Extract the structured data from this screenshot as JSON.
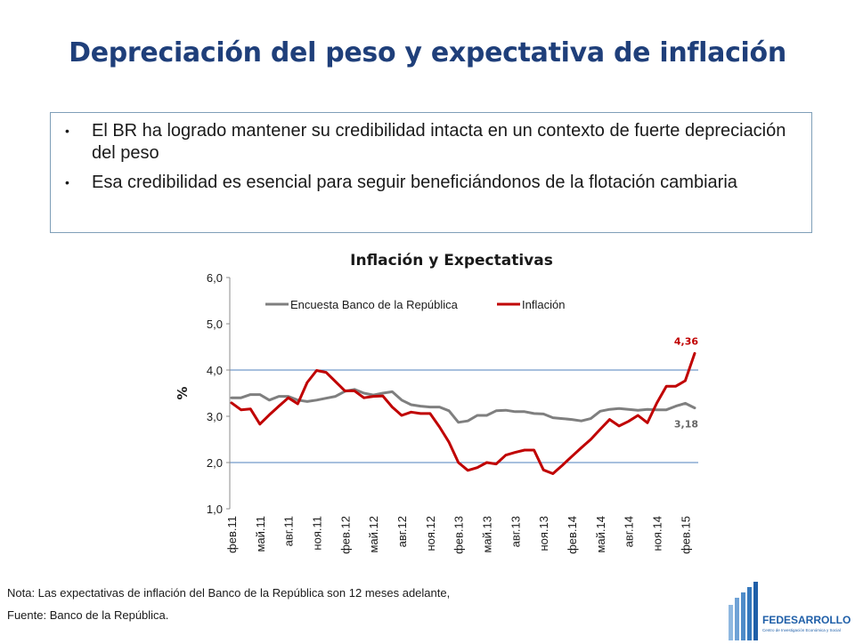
{
  "header": {
    "title": "Depreciación del peso y expectativa de inflación"
  },
  "bullets": [
    "El BR ha logrado mantener su credibilidad intacta en un contexto de fuerte depreciación del peso",
    "Esa credibilidad es esencial para seguir beneficiándonos de la flotación cambiaria"
  ],
  "chart_data": {
    "type": "line",
    "title": "Inflación y Expectativas",
    "xlabel": "",
    "ylabel": "%",
    "ylim": [
      1.0,
      6.0
    ],
    "yticks": [
      "1,0",
      "2,0",
      "3,0",
      "4,0",
      "5,0",
      "6,0"
    ],
    "xtick_labels": [
      "фев.11",
      "май.11",
      "авг.11",
      "ноя.11",
      "фев.12",
      "май.12",
      "авг.12",
      "ноя.12",
      "фев.13",
      "май.13",
      "авг.13",
      "ноя.13",
      "фев.14",
      "май.14",
      "авг.14",
      "ноя.14",
      "фев.15"
    ],
    "grid": "horizontal reference lines at 2,0 and 4,0",
    "legend_position": "top-left",
    "series": [
      {
        "name": "Encuesta Banco de la República",
        "color": "#7f7f7f",
        "values": [
          3.4,
          3.4,
          3.47,
          3.47,
          3.35,
          3.43,
          3.43,
          3.35,
          3.32,
          3.35,
          3.39,
          3.43,
          3.54,
          3.58,
          3.5,
          3.46,
          3.5,
          3.53,
          3.35,
          3.25,
          3.22,
          3.2,
          3.2,
          3.12,
          2.87,
          2.9,
          3.02,
          3.02,
          3.12,
          3.13,
          3.1,
          3.1,
          3.06,
          3.05,
          2.97,
          2.95,
          2.93,
          2.9,
          2.95,
          3.11,
          3.15,
          3.17,
          3.15,
          3.13,
          3.15,
          3.14,
          3.14,
          3.22,
          3.28,
          3.18
        ],
        "end_label": "3,18"
      },
      {
        "name": "Inflación",
        "color": "#c00000",
        "values": [
          3.29,
          3.14,
          3.16,
          2.83,
          3.03,
          3.22,
          3.4,
          3.27,
          3.73,
          3.99,
          3.95,
          3.75,
          3.55,
          3.55,
          3.4,
          3.43,
          3.44,
          3.2,
          3.02,
          3.09,
          3.06,
          3.06,
          2.77,
          2.44,
          2.0,
          1.83,
          1.89,
          2.0,
          1.97,
          2.16,
          2.22,
          2.27,
          2.27,
          1.84,
          1.76,
          1.94,
          2.13,
          2.32,
          2.5,
          2.72,
          2.93,
          2.79,
          2.89,
          3.02,
          2.86,
          3.29,
          3.65,
          3.65,
          3.77,
          4.36
        ],
        "end_label": "4,36"
      }
    ]
  },
  "notes": {
    "nota": "Nota: Las expectativas de inflación del Banco de la República son 12 meses adelante,",
    "fuente": "Fuente: Banco de la República."
  },
  "logo": {
    "name": "FEDESARROLLO",
    "tagline": "Centro de Investigación Económica y Social",
    "color": "#1f5fa8"
  }
}
